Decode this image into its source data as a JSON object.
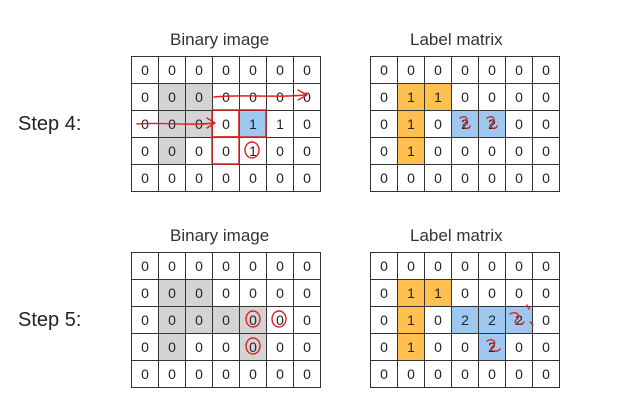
{
  "panels": [
    {
      "step_label": "Step 4:",
      "binary": {
        "title": "Binary image",
        "cells": [
          [
            "0",
            "0",
            "0",
            "0",
            "0",
            "0",
            "0"
          ],
          [
            "0",
            "0",
            "0",
            "0",
            "0",
            "0",
            "0"
          ],
          [
            "0",
            "0",
            "0",
            "0",
            "1",
            "1",
            "0"
          ],
          [
            "0",
            "0",
            "0",
            "0",
            "1",
            "0",
            "0"
          ],
          [
            "0",
            "0",
            "0",
            "0",
            "0",
            "0",
            "0"
          ]
        ],
        "fills": [
          [
            "w",
            "w",
            "w",
            "w",
            "w",
            "w",
            "w"
          ],
          [
            "w",
            "g",
            "g",
            "w",
            "w",
            "w",
            "w"
          ],
          [
            "w",
            "g",
            "g",
            "w",
            "b",
            "w",
            "w"
          ],
          [
            "w",
            "g",
            "w",
            "w",
            "w",
            "w",
            "w"
          ],
          [
            "w",
            "w",
            "w",
            "w",
            "w",
            "w",
            "w"
          ]
        ]
      },
      "label": {
        "title": "Label matrix",
        "cells": [
          [
            "0",
            "0",
            "0",
            "0",
            "0",
            "0",
            "0"
          ],
          [
            "0",
            "1",
            "1",
            "0",
            "0",
            "0",
            "0"
          ],
          [
            "0",
            "1",
            "0",
            "2",
            "2",
            "0",
            "0"
          ],
          [
            "0",
            "1",
            "0",
            "0",
            "0",
            "0",
            "0"
          ],
          [
            "0",
            "0",
            "0",
            "0",
            "0",
            "0",
            "0"
          ]
        ],
        "fills": [
          [
            "w",
            "w",
            "w",
            "w",
            "w",
            "w",
            "w"
          ],
          [
            "w",
            "o",
            "o",
            "w",
            "w",
            "w",
            "w"
          ],
          [
            "w",
            "o",
            "w",
            "b",
            "b",
            "w",
            "w"
          ],
          [
            "w",
            "o",
            "w",
            "w",
            "w",
            "w",
            "w"
          ],
          [
            "w",
            "w",
            "w",
            "w",
            "w",
            "w",
            "w"
          ]
        ]
      }
    },
    {
      "step_label": "Step 5:",
      "binary": {
        "title": "Binary image",
        "cells": [
          [
            "0",
            "0",
            "0",
            "0",
            "0",
            "0",
            "0"
          ],
          [
            "0",
            "0",
            "0",
            "0",
            "0",
            "0",
            "0"
          ],
          [
            "0",
            "0",
            "0",
            "0",
            "0",
            "0",
            "0"
          ],
          [
            "0",
            "0",
            "0",
            "0",
            "0",
            "0",
            "0"
          ],
          [
            "0",
            "0",
            "0",
            "0",
            "0",
            "0",
            "0"
          ]
        ],
        "fills": [
          [
            "w",
            "w",
            "w",
            "w",
            "w",
            "w",
            "w"
          ],
          [
            "w",
            "g",
            "g",
            "w",
            "w",
            "w",
            "w"
          ],
          [
            "w",
            "g",
            "g",
            "g",
            "g",
            "w",
            "w"
          ],
          [
            "w",
            "g",
            "w",
            "w",
            "g",
            "w",
            "w"
          ],
          [
            "w",
            "w",
            "w",
            "w",
            "w",
            "w",
            "w"
          ]
        ]
      },
      "label": {
        "title": "Label matrix",
        "cells": [
          [
            "0",
            "0",
            "0",
            "0",
            "0",
            "0",
            "0"
          ],
          [
            "0",
            "1",
            "1",
            "0",
            "0",
            "0",
            "0"
          ],
          [
            "0",
            "1",
            "0",
            "2",
            "2",
            "2",
            "0"
          ],
          [
            "0",
            "1",
            "0",
            "0",
            "2",
            "0",
            "0"
          ],
          [
            "0",
            "0",
            "0",
            "0",
            "0",
            "0",
            "0"
          ]
        ],
        "fills": [
          [
            "w",
            "w",
            "w",
            "w",
            "w",
            "w",
            "w"
          ],
          [
            "w",
            "o",
            "o",
            "w",
            "w",
            "w",
            "w"
          ],
          [
            "w",
            "o",
            "w",
            "b",
            "b",
            "b",
            "w"
          ],
          [
            "w",
            "o",
            "w",
            "w",
            "b",
            "w",
            "w"
          ],
          [
            "w",
            "w",
            "w",
            "w",
            "w",
            "w",
            "w"
          ]
        ]
      }
    }
  ],
  "colors": {
    "gray": "#d4d4d4",
    "orange": "#ffc04f",
    "blue": "#9fc8f0",
    "annotation_red": "#e02020"
  }
}
